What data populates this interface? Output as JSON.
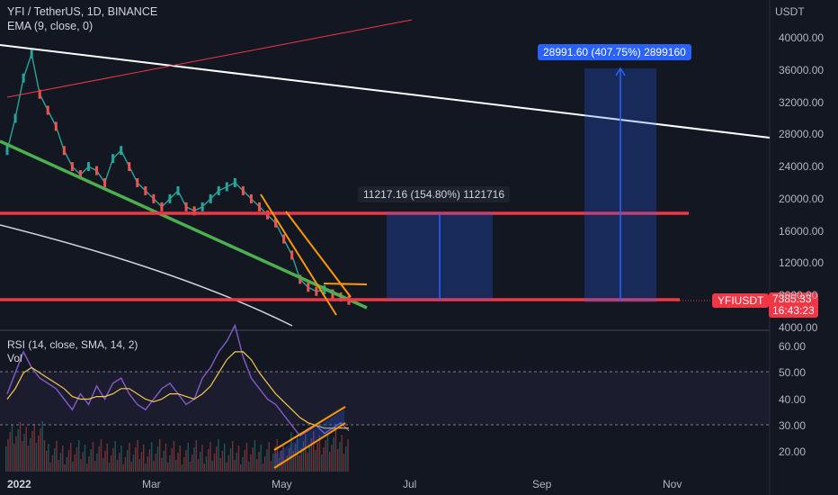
{
  "header": {
    "title": "YFI / TetherUS, 1D, BINANCE",
    "ema": "EMA (9, close, 0)",
    "currency": "USDT"
  },
  "rsi": {
    "title": "RSI (14, close, SMA, 14, 2)",
    "vol_title": "Vol"
  },
  "measures": {
    "m1": "11217.16 (154.80%) 1121716",
    "m2": "28991.60 (407.75%) 2899160"
  },
  "ticker": {
    "symbol": "YFIUSDT",
    "price": "7385.33",
    "countdown": "16:43:23"
  },
  "colors": {
    "background": "#131722",
    "red_line": "#f23645",
    "green_line": "#4caf50",
    "orange_channel": "#ff9800",
    "blue_fill": "#2962ff",
    "rsi_line": "#7e57c2",
    "rsi_ma": "#f6c84c"
  },
  "chart_data": {
    "type": "line",
    "title": "YFI / TetherUS, 1D, BINANCE",
    "price_axis": {
      "ticks": [
        "40000.00",
        "36000.00",
        "32000.00",
        "28000.00",
        "24000.00",
        "20000.00",
        "16000.00",
        "12000.00",
        "8000.00",
        "4000.00"
      ],
      "range": [
        3500,
        43000
      ]
    },
    "rsi_axis": {
      "ticks": [
        "60.00",
        "50.00",
        "40.00",
        "30.00",
        "20.00"
      ],
      "range": [
        14,
        72
      ]
    },
    "x_ticks": [
      "2022",
      "Mar",
      "May",
      "Jul",
      "Sep",
      "Nov"
    ],
    "levels": [
      {
        "name": "resistance",
        "value": 18300
      },
      {
        "name": "support",
        "value": 8000
      }
    ],
    "price_series": {
      "x_days": [
        0,
        4,
        8,
        12,
        16,
        20,
        24,
        28,
        32,
        36,
        40,
        44,
        48,
        52,
        56,
        60,
        64,
        68,
        72,
        76,
        80,
        84,
        88,
        92,
        96,
        100,
        104,
        108,
        112,
        116,
        120,
        124,
        128,
        132,
        136,
        140,
        144,
        148,
        152,
        156,
        160,
        164,
        168
      ],
      "close": [
        26000,
        30000,
        35000,
        38000,
        33000,
        31000,
        29000,
        26000,
        24000,
        23000,
        24000,
        23500,
        22000,
        25000,
        26000,
        24000,
        22000,
        21000,
        20000,
        19000,
        20000,
        21000,
        19000,
        18500,
        19000,
        20000,
        21000,
        21500,
        22000,
        21000,
        20000,
        19000,
        18000,
        17000,
        15000,
        13000,
        10000,
        9000,
        8500,
        8700,
        8200,
        7800,
        7385
      ]
    },
    "rsi_series": {
      "x_days": [
        0,
        4,
        8,
        12,
        16,
        20,
        24,
        28,
        32,
        36,
        40,
        44,
        48,
        52,
        56,
        60,
        64,
        68,
        72,
        76,
        80,
        84,
        88,
        92,
        96,
        100,
        104,
        108,
        112,
        116,
        120,
        124,
        128,
        132,
        136,
        140,
        144,
        148,
        152,
        156,
        160,
        164,
        168
      ],
      "rsi": [
        42,
        50,
        58,
        52,
        48,
        46,
        44,
        40,
        36,
        42,
        38,
        45,
        40,
        46,
        48,
        42,
        38,
        36,
        40,
        44,
        46,
        42,
        38,
        40,
        48,
        52,
        58,
        62,
        68,
        56,
        48,
        44,
        40,
        38,
        34,
        30,
        26,
        28,
        30,
        27,
        29,
        31,
        28
      ],
      "rsi_ma": [
        40,
        44,
        50,
        52,
        50,
        48,
        46,
        44,
        41,
        40,
        40,
        41,
        41,
        42,
        44,
        44,
        42,
        40,
        39,
        40,
        42,
        42,
        41,
        40,
        42,
        45,
        50,
        55,
        58,
        58,
        55,
        50,
        46,
        42,
        39,
        36,
        33,
        31,
        30,
        29,
        29,
        29,
        29
      ]
    },
    "projections": [
      {
        "label": "11217.16 (154.80%) 1121716",
        "from": 8000,
        "to": 18300
      },
      {
        "label": "28991.60 (407.75%) 2899160",
        "from": 7900,
        "to": 36000
      }
    ]
  }
}
